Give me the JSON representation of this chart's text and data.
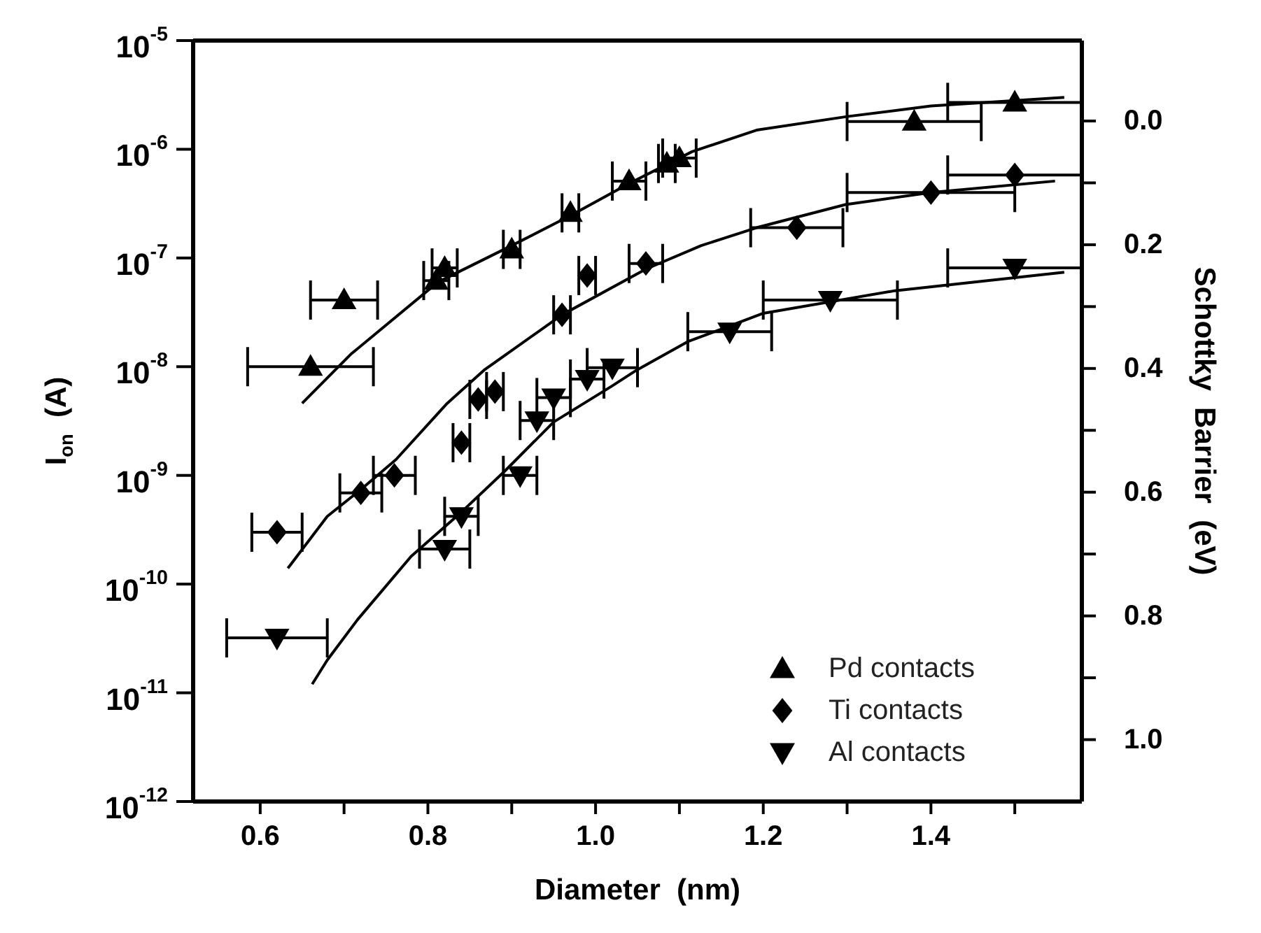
{
  "chart_data": {
    "type": "scatter",
    "xlabel": "Diameter  (nm)",
    "ylabel": "I$_{on}$  (A)",
    "y2label": "Schottky  Barrier  (eV)",
    "log": "y",
    "xlim": [
      0.52,
      1.58
    ],
    "ylim": [
      1e-12,
      1e-05
    ],
    "y2lim": [
      1.1,
      -0.13
    ],
    "xticks": [
      0.6,
      {
        "value": 0.7,
        "label": null
      },
      0.8,
      {
        "value": 0.9,
        "label": null
      },
      {
        "value": 1.0,
        "label": "1.0"
      },
      {
        "value": 1.1,
        "label": null
      },
      1.2,
      {
        "value": 1.3,
        "label": null
      },
      1.4,
      {
        "value": 1.5,
        "label": null
      }
    ],
    "yticks": [
      {
        "value": 1e-12,
        "label": "10$^{-12}$"
      },
      {
        "value": 1e-11,
        "label": "10$^{-11}$"
      },
      {
        "value": 1e-10,
        "label": "10$^{-10}$"
      },
      {
        "value": 1e-09,
        "label": "10$^{-9}$"
      },
      {
        "value": 1e-08,
        "label": "10$^{-8}$"
      },
      {
        "value": 1e-07,
        "label": "10$^{-7}$"
      },
      {
        "value": 1e-06,
        "label": "10$^{-6}$"
      },
      {
        "value": 1e-05,
        "label": "10$^{-5}$"
      }
    ],
    "y2ticks": [
      {
        "value": 0,
        "label": "0.0"
      },
      {
        "value": 0.1,
        "label": null
      },
      0.2,
      {
        "value": 0.3,
        "label": null
      },
      0.4,
      {
        "value": 0.5,
        "label": null
      },
      0.6,
      {
        "value": 0.7,
        "label": null
      },
      0.8,
      {
        "value": 0.9,
        "label": null
      },
      {
        "value": 1.0,
        "label": "1.0"
      }
    ],
    "legend": "bottom right",
    "series": [
      {
        "name": "Pd contacts",
        "marker": "triangle",
        "color": "#000000",
        "x": [
          0.66,
          0.7,
          0.81,
          0.82,
          0.9,
          0.97,
          1.04,
          1.085,
          1.1,
          1.38,
          1.5
        ],
        "values": [
          1e-08,
          4.1e-08,
          6.2e-08,
          8.1e-08,
          1.2e-07,
          2.6e-07,
          5.1e-07,
          7.4e-07,
          8.3e-07,
          1.8e-06,
          2.7e-06
        ],
        "xerrors": [
          0.075,
          0.04,
          0.015,
          0.015,
          0.01,
          0.01,
          0.02,
          0.01,
          0.02,
          0.08,
          0.08
        ]
      },
      {
        "name": "Ti contacts",
        "marker": "diamond",
        "color": "#000000",
        "x": [
          0.62,
          0.72,
          0.76,
          0.84,
          0.86,
          0.88,
          0.96,
          0.99,
          1.06,
          1.24,
          1.4,
          1.5
        ],
        "values": [
          3e-10,
          6.9e-10,
          1e-09,
          2e-09,
          5e-09,
          5.9e-09,
          3e-08,
          6.9e-08,
          8.9e-08,
          1.9e-07,
          4e-07,
          5.8e-07
        ],
        "xerrors": [
          0.03,
          0.025,
          0.025,
          0.01,
          0.01,
          0.01,
          0.01,
          0.01,
          0.02,
          0.055,
          0.1,
          0.08
        ]
      },
      {
        "name": "Al contacts",
        "marker": "triangle-down",
        "color": "#000000",
        "x": [
          0.62,
          0.82,
          0.84,
          0.91,
          0.93,
          0.95,
          0.99,
          1.02,
          1.16,
          1.28,
          1.5
        ],
        "values": [
          3.2e-11,
          2.1e-10,
          4.2e-10,
          1e-09,
          3.2e-09,
          5.2e-09,
          7.7e-09,
          9.8e-09,
          2.1e-08,
          4.1e-08,
          8.1e-08
        ],
        "xerrors": [
          0.06,
          0.03,
          0.02,
          0.02,
          0.02,
          0.02,
          0.02,
          0.03,
          0.05,
          0.08,
          0.08
        ]
      },
      {
        "type": "line",
        "marker": "none",
        "line_style": "solid",
        "color": "#000000",
        "x": [
          0.65,
          0.708,
          0.812,
          0.9,
          0.972,
          1.039,
          1.115,
          1.192,
          1.3,
          1.4,
          1.559
        ],
        "values": [
          4.6e-09,
          1.3e-08,
          6e-08,
          1.3e-07,
          2.5e-07,
          4.8e-07,
          9.5e-07,
          1.5e-06,
          2e-06,
          2.5e-06,
          3e-06
        ]
      },
      {
        "type": "line",
        "marker": "none",
        "line_style": "solid",
        "color": "#000000",
        "x": [
          0.633,
          0.68,
          0.72,
          0.762,
          0.823,
          0.867,
          0.96,
          1.06,
          1.126,
          1.192,
          1.298,
          1.4,
          1.548
        ],
        "values": [
          1.4e-10,
          4.2e-10,
          7.4e-10,
          1.4e-09,
          4.6e-09,
          9.3e-09,
          3e-08,
          7.9e-08,
          1.3e-07,
          1.9e-07,
          3.1e-07,
          4e-07,
          5.1e-07
        ]
      },
      {
        "type": "line",
        "marker": "none",
        "line_style": "solid",
        "color": "#000000",
        "x": [
          0.662,
          0.68,
          0.716,
          0.78,
          0.84,
          0.892,
          0.95,
          1.019,
          1.049,
          1.11,
          1.2,
          1.357,
          1.559
        ],
        "values": [
          1.2e-11,
          2e-11,
          4.7e-11,
          1.8e-10,
          4.6e-10,
          1.1e-09,
          3.1e-09,
          6.6e-09,
          9.3e-09,
          1.7e-08,
          3.1e-08,
          5e-08,
          7.4e-08
        ]
      }
    ]
  }
}
